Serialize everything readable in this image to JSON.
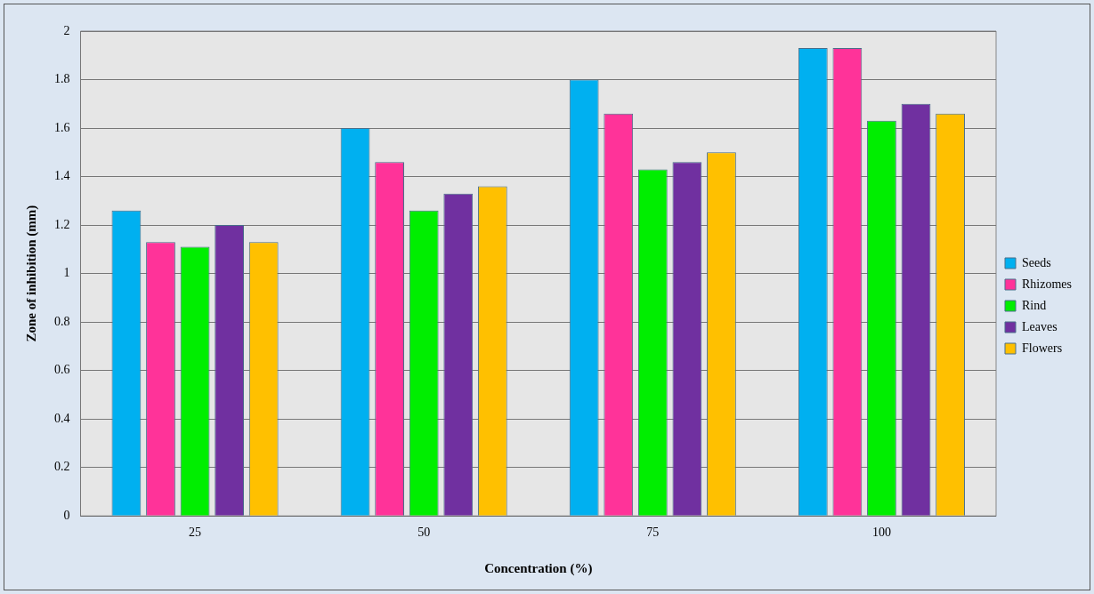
{
  "chart_data": {
    "type": "bar",
    "xlabel": "Concentration (%)",
    "ylabel": "Zone of inhibition (mm)",
    "categories": [
      "25",
      "50",
      "75",
      "100"
    ],
    "series": [
      {
        "name": "Seeds",
        "color": "#00b0f0",
        "values": [
          1.26,
          1.6,
          1.8,
          1.93
        ]
      },
      {
        "name": "Rhizomes",
        "color": "#ff3399",
        "values": [
          1.13,
          1.46,
          1.66,
          1.93
        ]
      },
      {
        "name": "Rind",
        "color": "#00ee00",
        "values": [
          1.11,
          1.26,
          1.43,
          1.63
        ]
      },
      {
        "name": "Leaves",
        "color": "#7030a0",
        "values": [
          1.2,
          1.33,
          1.46,
          1.7
        ]
      },
      {
        "name": "Flowers",
        "color": "#ffc000",
        "values": [
          1.13,
          1.36,
          1.5,
          1.66
        ]
      }
    ],
    "ylim": [
      0,
      2
    ],
    "yticks": [
      0,
      0.2,
      0.4,
      0.6,
      0.8,
      1,
      1.2,
      1.4,
      1.6,
      1.8,
      2
    ],
    "grid": "y",
    "legend": "right"
  }
}
